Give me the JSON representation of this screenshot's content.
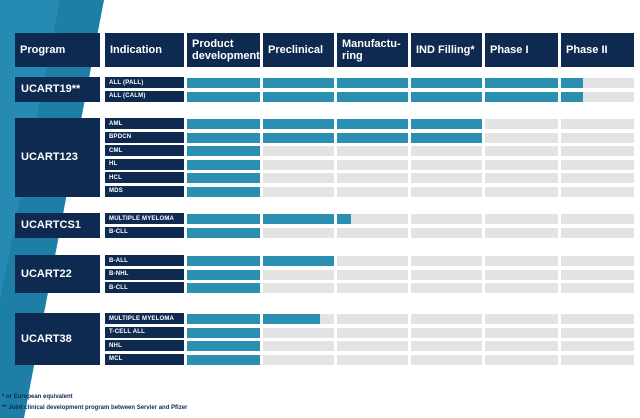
{
  "chart_data": {
    "type": "table",
    "colors": {
      "header": "#0e2a50",
      "progress": "#2a8fb0",
      "empty": "#e3e3e3",
      "band": "#1e7fa6"
    },
    "columns": [
      "Program",
      "Indication",
      "Product development",
      "Preclinical",
      "Manufacturing",
      "IND Filling*",
      "Phase I",
      "Phase II"
    ],
    "header_labels": [
      "Program",
      "Indication",
      "Product\ndevelopment",
      "Preclinical",
      "Manufactu-\nring",
      "IND Filling*",
      "Phase I",
      "Phase II"
    ],
    "programs": [
      {
        "name": "UCART19**",
        "rows": [
          {
            "indication": "ALL (PALL)",
            "progress": 5.3
          },
          {
            "indication": "ALL (CALM)",
            "progress": 5.3
          }
        ]
      },
      {
        "name": "UCART123",
        "rows": [
          {
            "indication": "AML",
            "progress": 4.0
          },
          {
            "indication": "BPDCN",
            "progress": 4.0
          },
          {
            "indication": "CML",
            "progress": 1.0
          },
          {
            "indication": "HL",
            "progress": 1.0
          },
          {
            "indication": "HCL",
            "progress": 1.0
          },
          {
            "indication": "MDS",
            "progress": 1.0
          }
        ]
      },
      {
        "name": "UCARTCS1",
        "rows": [
          {
            "indication": "MULTIPLE MYELOMA",
            "progress": 2.2
          },
          {
            "indication": "B-CLL",
            "progress": 1.0
          }
        ]
      },
      {
        "name": "UCART22",
        "rows": [
          {
            "indication": "B-ALL",
            "progress": 2.0
          },
          {
            "indication": "B-NHL",
            "progress": 1.0
          },
          {
            "indication": "B-CLL",
            "progress": 1.0
          }
        ]
      },
      {
        "name": "UCART38",
        "rows": [
          {
            "indication": "MULTIPLE MYELOMA",
            "progress": 1.8
          },
          {
            "indication": "T-CELL ALL",
            "progress": 1.0
          },
          {
            "indication": "NHL",
            "progress": 1.0
          },
          {
            "indication": "MCL",
            "progress": 1.0
          }
        ]
      }
    ]
  },
  "footnotes": [
    "* or European equivalent",
    "** Joint clinical development program between Servier and Pfizer"
  ]
}
